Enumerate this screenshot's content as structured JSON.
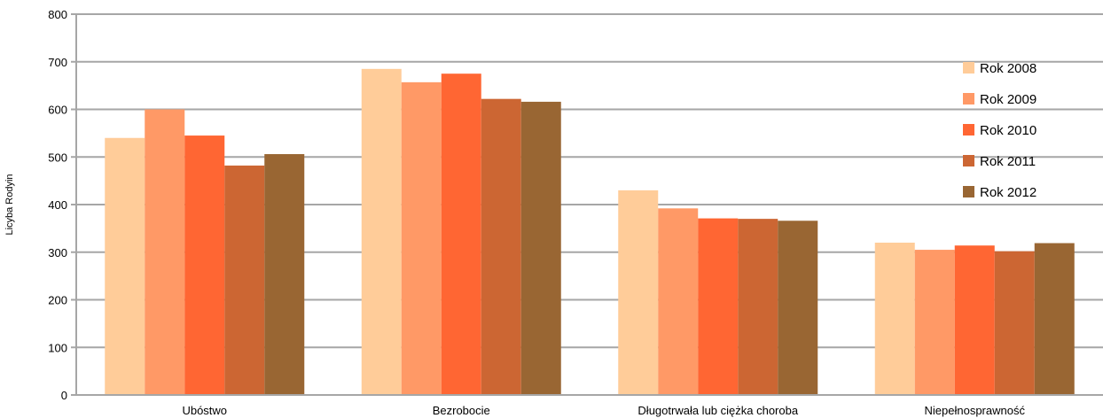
{
  "chart_data": {
    "type": "bar",
    "title": "",
    "xlabel": "",
    "ylabel": "Licyba Rodyin",
    "ylim": [
      0,
      800
    ],
    "yticks": [
      0,
      100,
      200,
      300,
      400,
      500,
      600,
      700,
      800
    ],
    "grid": true,
    "legend_position": "right",
    "categories": [
      "Ubóstwo",
      "Bezrobocie",
      "Długotrwała lub ciężka choroba",
      "Niepełnosprawność"
    ],
    "series": [
      {
        "name": "Rok 2008",
        "color": "#FFCC99",
        "values": [
          540,
          685,
          430,
          320
        ]
      },
      {
        "name": "Rok 2009",
        "color": "#FF9966",
        "values": [
          600,
          657,
          392,
          305
        ]
      },
      {
        "name": "Rok 2010",
        "color": "#FF6633",
        "values": [
          545,
          675,
          371,
          314
        ]
      },
      {
        "name": "Rok 2011",
        "color": "#CC6633",
        "values": [
          482,
          622,
          370,
          302
        ]
      },
      {
        "name": "Rok 2012",
        "color": "#996633",
        "values": [
          506,
          616,
          366,
          319
        ]
      }
    ]
  }
}
